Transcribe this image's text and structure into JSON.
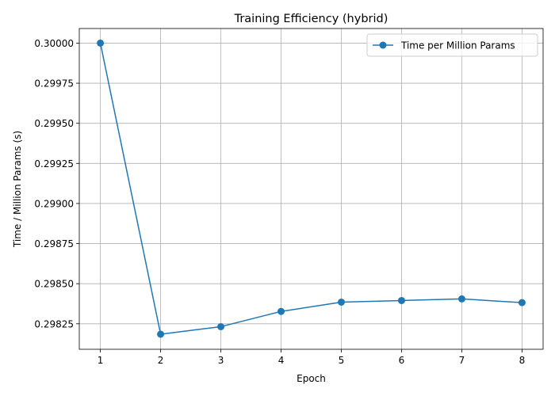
{
  "chart_data": {
    "type": "line",
    "title": "Training Efficiency (hybrid)",
    "xlabel": "Epoch",
    "ylabel": "Time / Million Params (s)",
    "x": [
      1,
      2,
      3,
      4,
      5,
      6,
      7,
      8
    ],
    "series": [
      {
        "name": "Time per Million Params",
        "values": [
          0.3,
          0.298185,
          0.298232,
          0.298327,
          0.298385,
          0.298395,
          0.298405,
          0.298382
        ],
        "color": "#1f77b4",
        "marker": "circle"
      }
    ],
    "xticks": [
      1,
      2,
      3,
      4,
      5,
      6,
      7,
      8
    ],
    "xtick_labels": [
      "1",
      "2",
      "3",
      "4",
      "5",
      "6",
      "7",
      "8"
    ],
    "yticks": [
      0.29825,
      0.2985,
      0.29875,
      0.299,
      0.29925,
      0.2995,
      0.29975,
      0.3
    ],
    "ytick_labels": [
      "0.29825",
      "0.29850",
      "0.29875",
      "0.29900",
      "0.29925",
      "0.29950",
      "0.29975",
      "0.30000"
    ],
    "xlim": [
      0.65,
      8.35
    ],
    "ylim": [
      0.298091,
      0.300091
    ],
    "grid": true,
    "legend_position": "top-right"
  }
}
